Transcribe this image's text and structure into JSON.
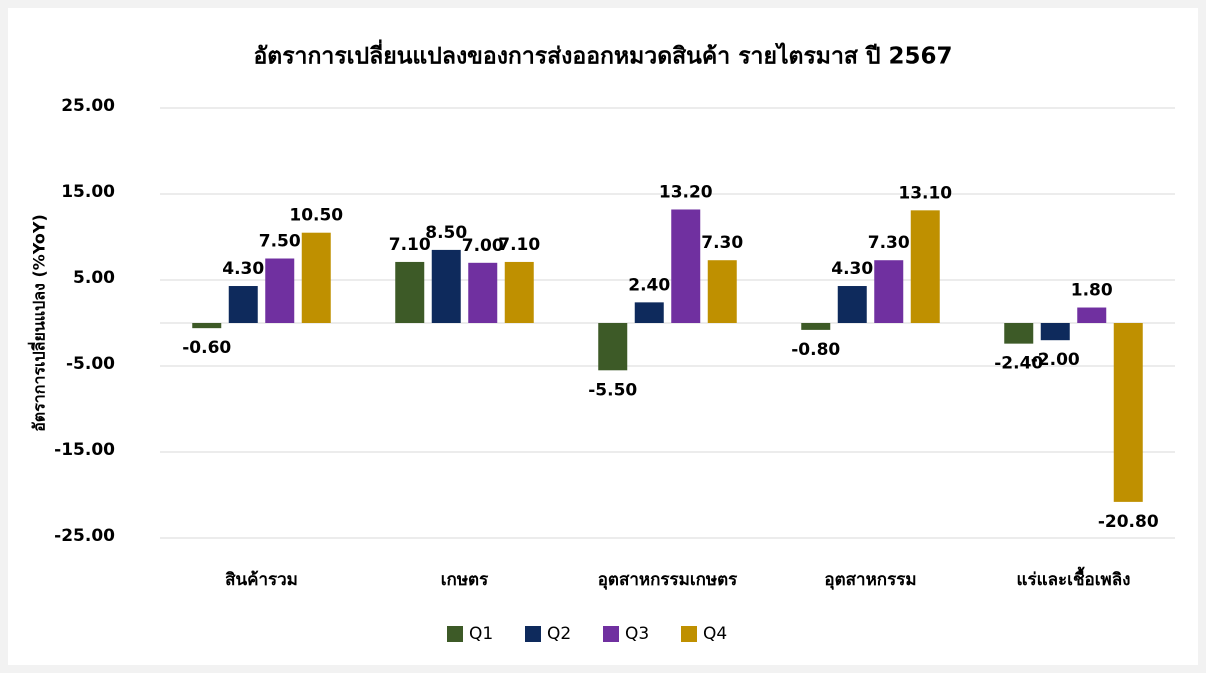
{
  "chart_data": {
    "type": "bar",
    "title": "อัตราการเปลี่ยนแปลงของการส่งออกหมวดสินค้า รายไตรมาส ปี 2567",
    "y_label": "อัตราการเปลี่ยนแปลง (%YoY)",
    "categories": [
      "สินค้ารวม",
      "เกษตร",
      "อุตสาหกรรมเกษตร",
      "อุตสาหกรรม",
      "แร่และเชื้อเพลิง"
    ],
    "series": [
      {
        "name": "Q1",
        "color": "#3d5a27",
        "values": [
          -0.6,
          7.1,
          -5.5,
          -0.8,
          -2.4
        ],
        "value_labels": [
          "-0.60",
          "7.10",
          "-5.50",
          "-0.80",
          "-2.40"
        ]
      },
      {
        "name": "Q2",
        "color": "#0e2a5c",
        "values": [
          4.3,
          8.5,
          2.4,
          4.3,
          -2.0
        ],
        "value_labels": [
          "4.30",
          "8.50",
          "2.40",
          "4.30",
          "-2.00"
        ]
      },
      {
        "name": "Q3",
        "color": "#7030a0",
        "values": [
          7.5,
          7.0,
          13.2,
          7.3,
          1.8
        ],
        "value_labels": [
          "7.50",
          "7.00",
          "13.20",
          "7.30",
          "1.80"
        ]
      },
      {
        "name": "Q4",
        "color": "#bf9000",
        "values": [
          10.5,
          7.1,
          7.3,
          13.1,
          -20.8
        ],
        "value_labels": [
          "10.50",
          "7.10",
          "7.30",
          "13.10",
          "-20.80"
        ]
      }
    ],
    "ylim": [
      -25,
      25
    ],
    "yticks": [
      {
        "value": 25,
        "label": "25.00"
      },
      {
        "value": 15,
        "label": "15.00"
      },
      {
        "value": 5,
        "label": "5.00"
      },
      {
        "value": -5,
        "label": "-5.00"
      },
      {
        "value": -15,
        "label": "-15.00"
      },
      {
        "value": -25,
        "label": "-25.00"
      }
    ],
    "grid": true,
    "legend": "bottom"
  }
}
